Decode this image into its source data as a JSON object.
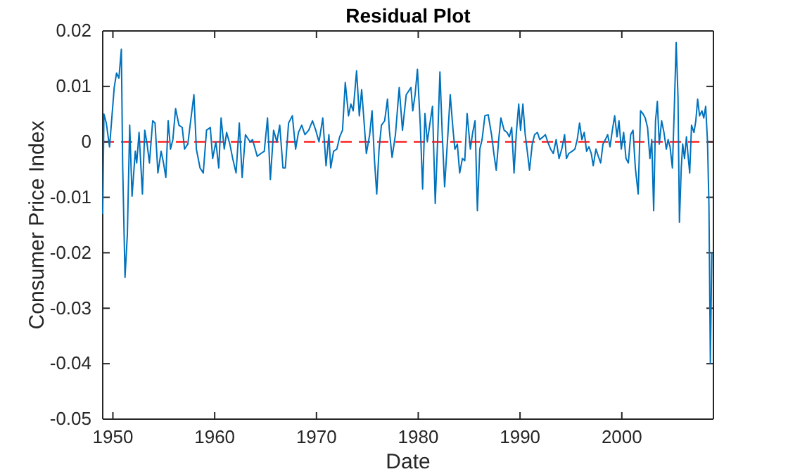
{
  "chart_data": {
    "type": "line",
    "title": "Residual Plot",
    "xlabel": "Date",
    "ylabel": "Consumer Price Index",
    "xlim": [
      1949,
      2009
    ],
    "xticks": [
      1950,
      1960,
      1970,
      1980,
      1990,
      2000
    ],
    "ylim": [
      -0.05,
      0.02
    ],
    "yticks": [
      -0.05,
      -0.04,
      -0.03,
      -0.02,
      -0.01,
      0,
      0.01,
      0.02
    ],
    "grid": false,
    "marker": "none",
    "line_style": "solid",
    "ref_lines": [
      {
        "axis": "y",
        "value": 0,
        "color": "#ff0000",
        "line_style": "dashed"
      }
    ],
    "series": [
      {
        "color": "#0072bd",
        "x": [
          1949.0,
          1949.12,
          1949.35,
          1949.67,
          1950.13,
          1950.36,
          1950.59,
          1950.83,
          1950.96,
          1951.19,
          1951.42,
          1951.65,
          1951.88,
          1952.2,
          1952.34,
          1952.57,
          1952.9,
          1953.13,
          1953.36,
          1953.59,
          1953.91,
          1954.14,
          1954.42,
          1954.74,
          1954.97,
          1955.2,
          1955.43,
          1955.66,
          1955.89,
          1956.16,
          1956.49,
          1956.81,
          1957.04,
          1957.36,
          1957.64,
          1957.96,
          1958.2,
          1958.56,
          1958.88,
          1959.2,
          1959.57,
          1959.8,
          1960.12,
          1960.4,
          1960.63,
          1960.94,
          1961.17,
          1961.49,
          1961.77,
          1962.1,
          1962.42,
          1962.7,
          1963.02,
          1963.48,
          1963.72,
          1964.18,
          1964.54,
          1964.87,
          1965.19,
          1965.47,
          1965.79,
          1966.11,
          1966.39,
          1966.71,
          1966.94,
          1967.26,
          1967.63,
          1967.95,
          1968.23,
          1968.55,
          1968.87,
          1969.24,
          1969.61,
          1969.93,
          1970.25,
          1970.62,
          1970.94,
          1971.22,
          1971.4,
          1971.68,
          1972.0,
          1972.28,
          1972.56,
          1972.83,
          1973.15,
          1973.38,
          1973.61,
          1973.94,
          1974.21,
          1974.44,
          1974.67,
          1974.9,
          1975.23,
          1975.46,
          1975.69,
          1975.92,
          1976.15,
          1976.38,
          1976.7,
          1976.98,
          1977.16,
          1977.43,
          1977.76,
          1978.13,
          1978.45,
          1978.82,
          1979.28,
          1979.46,
          1979.69,
          1979.92,
          1980.2,
          1980.43,
          1980.66,
          1980.89,
          1981.12,
          1981.4,
          1981.67,
          1981.9,
          1982.13,
          1982.36,
          1982.59,
          1982.91,
          1983.14,
          1983.42,
          1983.6,
          1983.84,
          1984.07,
          1984.34,
          1984.57,
          1984.8,
          1985.12,
          1985.35,
          1985.58,
          1985.81,
          1986.05,
          1986.27,
          1986.55,
          1986.87,
          1987.2,
          1987.43,
          1987.66,
          1987.93,
          1988.12,
          1988.44,
          1988.72,
          1988.95,
          1989.18,
          1989.41,
          1989.64,
          1989.87,
          1990.05,
          1990.28,
          1990.51,
          1990.74,
          1990.93,
          1991.2,
          1991.43,
          1991.71,
          1991.94,
          1992.26,
          1992.49,
          1992.72,
          1993.0,
          1993.27,
          1993.55,
          1993.83,
          1994.1,
          1994.38,
          1994.56,
          1994.79,
          1995.11,
          1995.39,
          1995.62,
          1995.85,
          1996.08,
          1996.31,
          1996.54,
          1996.77,
          1997.0,
          1997.19,
          1997.46,
          1997.69,
          1997.92,
          1998.15,
          1998.38,
          1998.61,
          1998.84,
          1999.07,
          1999.3,
          1999.53,
          1999.72,
          1999.95,
          2000.18,
          2000.41,
          2000.64,
          2000.87,
          2001.1,
          2001.33,
          2001.61,
          2001.84,
          2002.07,
          2002.3,
          2002.53,
          2002.76,
          2002.94,
          2003.13,
          2003.31,
          2003.49,
          2003.68,
          2003.91,
          2004.14,
          2004.37,
          2004.55,
          2004.74,
          2004.97,
          2005.15,
          2005.34,
          2005.52,
          2005.66,
          2005.84,
          2005.98,
          2006.16,
          2006.35,
          2006.49,
          2006.67,
          2006.85,
          2007.09,
          2007.27,
          2007.45,
          2007.64,
          2007.87,
          2008.05,
          2008.24,
          2008.42,
          2008.56,
          2008.7,
          2008.84
        ],
        "values": [
          -0.013,
          0.005,
          0.0034,
          -0.0009,
          0.0098,
          0.0124,
          0.0115,
          0.0167,
          -0.0043,
          -0.0244,
          -0.0167,
          0.003,
          -0.0098,
          -0.0017,
          -0.0038,
          0.0017,
          -0.0094,
          0.0021,
          -0.0004,
          -0.0038,
          0.0038,
          0.0034,
          -0.0056,
          -0.0017,
          -0.0038,
          -0.0064,
          0.0038,
          -0.0013,
          0.0004,
          0.006,
          0.003,
          0.0026,
          -0.0013,
          -0.0004,
          0.0038,
          0.0085,
          -0.0013,
          -0.0047,
          -0.0056,
          0.0021,
          0.0026,
          -0.003,
          0,
          -0.0047,
          0.0043,
          -0.0013,
          0.0017,
          -0.0004,
          -0.003,
          -0.0056,
          0.0034,
          -0.0064,
          0.0013,
          0,
          0.0004,
          -0.0026,
          -0.0021,
          -0.0017,
          0.0043,
          -0.0068,
          0.0021,
          0,
          0.003,
          -0.0047,
          -0.0047,
          0.0034,
          0.0047,
          -0.0013,
          0.0017,
          0.003,
          0.0013,
          0.0021,
          0.0038,
          0.0021,
          0,
          0.0043,
          -0.0043,
          0.0013,
          -0.0047,
          -0.0017,
          -0.0013,
          0.0009,
          0.0021,
          0.0107,
          0.0047,
          0.0068,
          0.0056,
          0.0128,
          0.0047,
          0.0094,
          0.0038,
          -0.0021,
          0.0013,
          0.0056,
          -0.003,
          -0.0094,
          -0.0013,
          0.003,
          0.0038,
          0.0077,
          0.0021,
          -0.0028,
          0.0013,
          0.0098,
          0.0021,
          0.0085,
          0.0098,
          0.0056,
          0.0085,
          0.0131,
          0.003,
          -0.0085,
          0.0051,
          0,
          0.003,
          0.0064,
          -0.0111,
          0,
          0.0126,
          0.0013,
          -0.0081,
          0.0013,
          0.0085,
          0.0021,
          -0.0013,
          -0.0004,
          -0.0056,
          -0.003,
          -0.0034,
          0.0051,
          -0.0013,
          0.0017,
          0.0038,
          -0.0124,
          -0.0013,
          0.0004,
          0.0047,
          0.0049,
          0.0013,
          -0.0021,
          -0.0051,
          0.0009,
          0.0043,
          0.0021,
          0.0017,
          0.0009,
          0.0026,
          -0.0056,
          0.0017,
          0.0068,
          0.0021,
          0.0068,
          0.0013,
          -0.0021,
          -0.0051,
          -0.0004,
          0.0013,
          0.0017,
          0.0004,
          0.0009,
          0.0013,
          0,
          -0.0013,
          -0.0021,
          0.0004,
          -0.003,
          -0.0013,
          0.0013,
          -0.003,
          -0.0021,
          -0.0017,
          -0.0013,
          0.0004,
          0.0034,
          0.0004,
          0.0017,
          -0.0017,
          -0.0009,
          -0.0021,
          -0.0043,
          -0.0013,
          -0.0026,
          -0.0038,
          -0.0004,
          0.0004,
          0.0013,
          -0.0009,
          0.0021,
          0.0047,
          0.0009,
          0.0038,
          -0.0013,
          0.0017,
          -0.003,
          -0.0038,
          0.0013,
          0.0021,
          -0.0047,
          -0.0094,
          0.0056,
          0.0051,
          0.0043,
          0.0026,
          -0.003,
          0.0004,
          -0.0124,
          0.0038,
          0.0073,
          -0.0004,
          0.0038,
          0.0017,
          -0.0013,
          0.0004,
          -0.0009,
          -0.0047,
          0.0056,
          0.0179,
          0.0081,
          -0.0145,
          -0.0047,
          -0.0004,
          -0.003,
          0.0009,
          -0.0021,
          -0.0056,
          0.003,
          0.0017,
          0.0038,
          0.0077,
          0.0047,
          0.0056,
          0.0043,
          0.0064,
          0,
          -0.0115,
          -0.0399,
          -0.02
        ]
      }
    ]
  }
}
